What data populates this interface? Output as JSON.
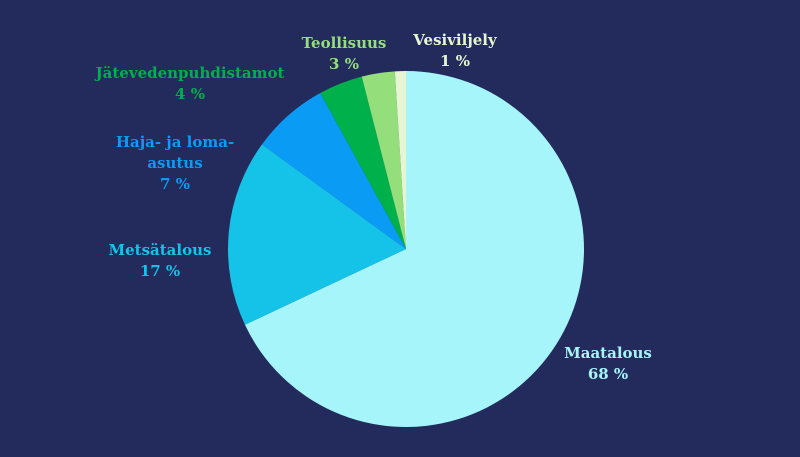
{
  "chart_data": {
    "type": "pie",
    "start_angle_deg": 0,
    "direction": "clockwise",
    "slices": [
      {
        "name": "Maatalous",
        "value_label": "68 %",
        "value": 68,
        "color": "#a6f5fb",
        "label_color": "#a6f5fb"
      },
      {
        "name": "Metsätalous",
        "value_label": "17 %",
        "value": 17,
        "color": "#16c3e8",
        "label_color": "#16c3e8"
      },
      {
        "name": "Haja- ja loma-asutus",
        "name_lines": [
          "Haja- ja loma-",
          "asutus"
        ],
        "value_label": "7 %",
        "value": 7,
        "color": "#0a9cf5",
        "label_color": "#0a9cf5"
      },
      {
        "name": "Jätevedenpuhdistamot",
        "value_label": "4 %",
        "value": 4,
        "color": "#00b04a",
        "label_color": "#00b04a"
      },
      {
        "name": "Teollisuus",
        "value_label": "3 %",
        "value": 3,
        "color": "#94de7c",
        "label_color": "#94de7c"
      },
      {
        "name": "Vesiviljely",
        "value_label": "1 %",
        "value": 1,
        "color": "#e6f5d3",
        "label_color": "#e6f5d3"
      }
    ]
  }
}
